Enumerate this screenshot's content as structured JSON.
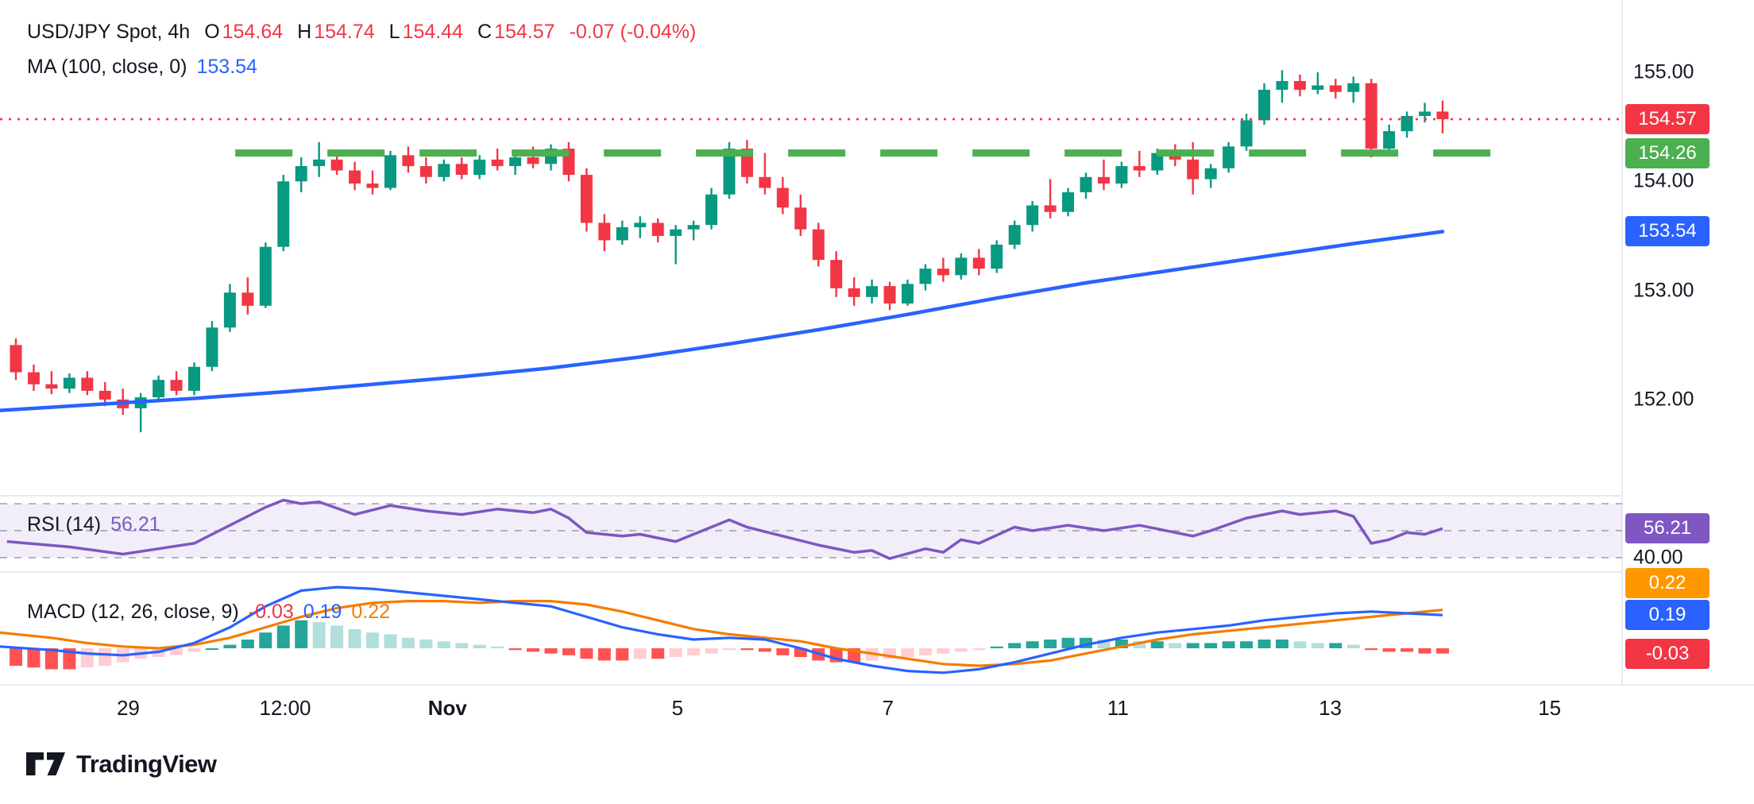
{
  "header": {
    "symbol": "USD/JPY Spot, 4h",
    "ohlc": {
      "o_label": "O",
      "o": "154.64",
      "h_label": "H",
      "h": "154.74",
      "l_label": "L",
      "l": "154.44",
      "c_label": "C",
      "c": "154.57",
      "change": "-0.07 (-0.04%)"
    },
    "ma_label": "MA (100, close, 0)",
    "ma_value": "153.54"
  },
  "panels": {
    "rsi": {
      "label": "RSI (14)",
      "value": "56.21"
    },
    "macd": {
      "label": "MACD (12, 26, close, 9)",
      "hist": "-0.03",
      "macd": "0.19",
      "signal": "0.22"
    }
  },
  "footer": {
    "logo_text": "TradingView"
  },
  "chart_data": {
    "type": "candlestick",
    "title": "USD/JPY Spot, 4h",
    "legend_ohlc": {
      "open": 154.64,
      "high": 154.74,
      "low": 154.44,
      "close": 154.57,
      "change": -0.07,
      "change_pct": -0.04
    },
    "price_axis": {
      "ticks": [
        {
          "text": "155.00",
          "value": 155.0,
          "style": "plain"
        },
        {
          "text": "154.57",
          "value": 154.57,
          "style": "badge",
          "bg": "#f23645"
        },
        {
          "text": "154.26",
          "value": 154.26,
          "style": "badge",
          "bg": "#4caf50"
        },
        {
          "text": "154.00",
          "value": 154.0,
          "style": "plain"
        },
        {
          "text": "153.54",
          "value": 153.54,
          "style": "badge",
          "bg": "#2962ff"
        },
        {
          "text": "153.00",
          "value": 153.0,
          "style": "plain"
        },
        {
          "text": "152.00",
          "value": 152.0,
          "style": "plain"
        }
      ]
    },
    "rsi_axis": {
      "ticks": [
        {
          "text": "56.21",
          "value": 56.21,
          "style": "badge",
          "bg": "#7e57c2"
        },
        {
          "text": "40.00",
          "value": 40,
          "style": "plain"
        }
      ]
    },
    "macd_axis": {
      "ticks": [
        {
          "text": "0.22",
          "value": 0.22,
          "bg": "#ff9800"
        },
        {
          "text": "0.19",
          "value": 0.19,
          "bg": "#2962ff"
        },
        {
          "text": "-0.03",
          "value": -0.03,
          "bg": "#f23645"
        }
      ]
    },
    "time_axis": {
      "ticks": [
        {
          "text": "29",
          "bar": 6.3
        },
        {
          "text": "12:00",
          "bar": 15.1
        },
        {
          "text": "Nov",
          "bar": 24.2,
          "bold": true
        },
        {
          "text": "5",
          "bar": 37.1
        },
        {
          "text": "7",
          "bar": 48.9
        },
        {
          "text": "11",
          "bar": 61.8
        },
        {
          "text": "13",
          "bar": 73.7
        },
        {
          "text": "15",
          "bar": 86.0
        }
      ]
    },
    "levels": {
      "current_price": {
        "value": 154.57,
        "color": "#f23645",
        "style": "dotted"
      },
      "resistance": {
        "value": 154.26,
        "color": "#4caf50",
        "style": "dashed",
        "from_bar": 12.3,
        "to_bar": 83.5
      }
    },
    "candles": [
      [
        152.5,
        152.56,
        152.18,
        152.25
      ],
      [
        152.25,
        152.32,
        152.08,
        152.14
      ],
      [
        152.14,
        152.26,
        152.05,
        152.1
      ],
      [
        152.1,
        152.24,
        152.06,
        152.2
      ],
      [
        152.2,
        152.26,
        152.04,
        152.08
      ],
      [
        152.08,
        152.16,
        151.94,
        152.0
      ],
      [
        152.0,
        152.1,
        151.86,
        151.92
      ],
      [
        151.92,
        152.06,
        151.7,
        152.02
      ],
      [
        152.02,
        152.22,
        151.98,
        152.18
      ],
      [
        152.18,
        152.26,
        152.04,
        152.08
      ],
      [
        152.08,
        152.34,
        152.04,
        152.3
      ],
      [
        152.3,
        152.72,
        152.26,
        152.66
      ],
      [
        152.66,
        153.06,
        152.62,
        152.98
      ],
      [
        152.98,
        153.12,
        152.78,
        152.86
      ],
      [
        152.86,
        153.44,
        152.84,
        153.4
      ],
      [
        153.4,
        154.06,
        153.36,
        154.0
      ],
      [
        154.0,
        154.22,
        153.9,
        154.14
      ],
      [
        154.14,
        154.36,
        154.04,
        154.2
      ],
      [
        154.2,
        154.26,
        154.06,
        154.1
      ],
      [
        154.1,
        154.18,
        153.92,
        153.98
      ],
      [
        153.98,
        154.1,
        153.88,
        153.94
      ],
      [
        153.94,
        154.28,
        153.92,
        154.24
      ],
      [
        154.24,
        154.32,
        154.08,
        154.14
      ],
      [
        154.14,
        154.22,
        153.98,
        154.04
      ],
      [
        154.04,
        154.2,
        154.0,
        154.16
      ],
      [
        154.16,
        154.22,
        154.02,
        154.06
      ],
      [
        154.06,
        154.24,
        154.02,
        154.2
      ],
      [
        154.2,
        154.3,
        154.1,
        154.14
      ],
      [
        154.14,
        154.26,
        154.06,
        154.22
      ],
      [
        154.22,
        154.32,
        154.12,
        154.16
      ],
      [
        154.16,
        154.34,
        154.1,
        154.3
      ],
      [
        154.3,
        154.36,
        154.0,
        154.06
      ],
      [
        154.06,
        154.12,
        153.54,
        153.62
      ],
      [
        153.62,
        153.7,
        153.36,
        153.46
      ],
      [
        153.46,
        153.64,
        153.42,
        153.58
      ],
      [
        153.58,
        153.68,
        153.48,
        153.62
      ],
      [
        153.62,
        153.66,
        153.44,
        153.5
      ],
      [
        153.5,
        153.6,
        153.24,
        153.56
      ],
      [
        153.56,
        153.64,
        153.46,
        153.6
      ],
      [
        153.6,
        153.94,
        153.56,
        153.88
      ],
      [
        153.88,
        154.36,
        153.84,
        154.3
      ],
      [
        154.3,
        154.38,
        153.98,
        154.04
      ],
      [
        154.04,
        154.26,
        153.88,
        153.94
      ],
      [
        153.94,
        154.04,
        153.7,
        153.76
      ],
      [
        153.76,
        153.88,
        153.5,
        153.56
      ],
      [
        153.56,
        153.62,
        153.22,
        153.28
      ],
      [
        153.28,
        153.36,
        152.94,
        153.02
      ],
      [
        153.02,
        153.12,
        152.86,
        152.94
      ],
      [
        152.94,
        153.1,
        152.88,
        153.04
      ],
      [
        153.04,
        153.08,
        152.82,
        152.88
      ],
      [
        152.88,
        153.1,
        152.86,
        153.06
      ],
      [
        153.06,
        153.24,
        153.0,
        153.2
      ],
      [
        153.2,
        153.3,
        153.08,
        153.14
      ],
      [
        153.14,
        153.34,
        153.1,
        153.3
      ],
      [
        153.3,
        153.38,
        153.14,
        153.2
      ],
      [
        153.2,
        153.46,
        153.16,
        153.42
      ],
      [
        153.42,
        153.64,
        153.38,
        153.6
      ],
      [
        153.6,
        153.82,
        153.54,
        153.78
      ],
      [
        153.78,
        154.02,
        153.66,
        153.72
      ],
      [
        153.72,
        153.94,
        153.68,
        153.9
      ],
      [
        153.9,
        154.08,
        153.84,
        154.04
      ],
      [
        154.04,
        154.2,
        153.92,
        153.98
      ],
      [
        153.98,
        154.18,
        153.94,
        154.14
      ],
      [
        154.14,
        154.28,
        154.04,
        154.1
      ],
      [
        154.1,
        154.3,
        154.06,
        154.26
      ],
      [
        154.26,
        154.34,
        154.14,
        154.2
      ],
      [
        154.2,
        154.36,
        153.88,
        154.02
      ],
      [
        154.02,
        154.16,
        153.94,
        154.12
      ],
      [
        154.12,
        154.36,
        154.08,
        154.32
      ],
      [
        154.32,
        154.62,
        154.28,
        154.56
      ],
      [
        154.56,
        154.9,
        154.52,
        154.84
      ],
      [
        154.84,
        155.02,
        154.72,
        154.92
      ],
      [
        154.92,
        154.98,
        154.78,
        154.84
      ],
      [
        154.84,
        155.0,
        154.8,
        154.88
      ],
      [
        154.88,
        154.94,
        154.76,
        154.82
      ],
      [
        154.82,
        154.96,
        154.72,
        154.9
      ],
      [
        154.9,
        154.94,
        154.22,
        154.3
      ],
      [
        154.3,
        154.52,
        154.24,
        154.46
      ],
      [
        154.46,
        154.64,
        154.4,
        154.6
      ],
      [
        154.6,
        154.72,
        154.54,
        154.64
      ],
      [
        154.64,
        154.74,
        154.44,
        154.57
      ]
    ],
    "ma100": {
      "period": 100,
      "source": "close",
      "offset": 0,
      "last": 153.54,
      "points": [
        [
          -0.9,
          151.9
        ],
        [
          5,
          151.96
        ],
        [
          10,
          152.01
        ],
        [
          15,
          152.07
        ],
        [
          20,
          152.14
        ],
        [
          25,
          152.21
        ],
        [
          30,
          152.29
        ],
        [
          35,
          152.39
        ],
        [
          40,
          152.51
        ],
        [
          45,
          152.64
        ],
        [
          50,
          152.78
        ],
        [
          55,
          152.93
        ],
        [
          60,
          153.07
        ],
        [
          65,
          153.19
        ],
        [
          70,
          153.31
        ],
        [
          75,
          153.43
        ],
        [
          80,
          153.54
        ]
      ]
    },
    "rsi": {
      "period": 14,
      "last": 56.21,
      "bands": [
        70,
        55,
        40
      ],
      "points": [
        [
          -0.5,
          49
        ],
        [
          3,
          46
        ],
        [
          6,
          42
        ],
        [
          8,
          45
        ],
        [
          10,
          48
        ],
        [
          12,
          58
        ],
        [
          14,
          68
        ],
        [
          15,
          72
        ],
        [
          16,
          70
        ],
        [
          17,
          71
        ],
        [
          19,
          64
        ],
        [
          21,
          69
        ],
        [
          23,
          66
        ],
        [
          25,
          64
        ],
        [
          27,
          67
        ],
        [
          29,
          65
        ],
        [
          30,
          67
        ],
        [
          31,
          62
        ],
        [
          32,
          54
        ],
        [
          34,
          52
        ],
        [
          35,
          53
        ],
        [
          36,
          51
        ],
        [
          37,
          49
        ],
        [
          38,
          53
        ],
        [
          40,
          61
        ],
        [
          41,
          57
        ],
        [
          43,
          52
        ],
        [
          45,
          47
        ],
        [
          47,
          43
        ],
        [
          48,
          44
        ],
        [
          49,
          39.5
        ],
        [
          51,
          45
        ],
        [
          52,
          43
        ],
        [
          53,
          50
        ],
        [
          54,
          48
        ],
        [
          56,
          57
        ],
        [
          57,
          55
        ],
        [
          59,
          58
        ],
        [
          61,
          55
        ],
        [
          63,
          58
        ],
        [
          64,
          56
        ],
        [
          66,
          52
        ],
        [
          67,
          55
        ],
        [
          69,
          62
        ],
        [
          71,
          66
        ],
        [
          72,
          64
        ],
        [
          74,
          66
        ],
        [
          75,
          63
        ],
        [
          76,
          48
        ],
        [
          77,
          50
        ],
        [
          78,
          54
        ],
        [
          79,
          53
        ],
        [
          80,
          56.2
        ]
      ]
    },
    "macd": {
      "fast": 12,
      "slow": 26,
      "source": "close",
      "signal_period": 9,
      "last": {
        "macd": 0.19,
        "signal": 0.22,
        "histogram": -0.03
      },
      "histogram": [
        -0.1,
        -0.11,
        -0.12,
        -0.12,
        -0.11,
        -0.1,
        -0.08,
        -0.06,
        -0.05,
        -0.04,
        -0.02,
        0.0,
        0.02,
        0.05,
        0.09,
        0.13,
        0.16,
        0.15,
        0.13,
        0.11,
        0.09,
        0.08,
        0.06,
        0.05,
        0.04,
        0.03,
        0.02,
        0.01,
        -0.01,
        -0.02,
        -0.03,
        -0.04,
        -0.06,
        -0.07,
        -0.07,
        -0.06,
        -0.06,
        -0.05,
        -0.04,
        -0.03,
        -0.01,
        -0.01,
        -0.02,
        -0.04,
        -0.05,
        -0.07,
        -0.08,
        -0.08,
        -0.07,
        -0.06,
        -0.05,
        -0.04,
        -0.03,
        -0.02,
        -0.01,
        0.01,
        0.03,
        0.04,
        0.05,
        0.06,
        0.06,
        0.05,
        0.05,
        0.04,
        0.04,
        0.03,
        0.03,
        0.03,
        0.04,
        0.04,
        0.05,
        0.05,
        0.04,
        0.03,
        0.03,
        0.02,
        -0.01,
        -0.02,
        -0.02,
        -0.03,
        -0.03
      ],
      "macd_line": [
        [
          -0.9,
          0.01
        ],
        [
          2,
          -0.01
        ],
        [
          4,
          -0.03
        ],
        [
          6,
          -0.04
        ],
        [
          8,
          -0.02
        ],
        [
          10,
          0.03
        ],
        [
          12,
          0.12
        ],
        [
          14,
          0.24
        ],
        [
          16,
          0.33
        ],
        [
          18,
          0.35
        ],
        [
          20,
          0.34
        ],
        [
          22,
          0.32
        ],
        [
          24,
          0.3
        ],
        [
          26,
          0.28
        ],
        [
          28,
          0.26
        ],
        [
          30,
          0.24
        ],
        [
          32,
          0.18
        ],
        [
          34,
          0.12
        ],
        [
          36,
          0.08
        ],
        [
          38,
          0.05
        ],
        [
          40,
          0.06
        ],
        [
          42,
          0.05
        ],
        [
          44,
          0.0
        ],
        [
          46,
          -0.06
        ],
        [
          48,
          -0.1
        ],
        [
          50,
          -0.13
        ],
        [
          52,
          -0.14
        ],
        [
          54,
          -0.12
        ],
        [
          56,
          -0.08
        ],
        [
          58,
          -0.03
        ],
        [
          60,
          0.02
        ],
        [
          62,
          0.06
        ],
        [
          64,
          0.09
        ],
        [
          66,
          0.11
        ],
        [
          68,
          0.13
        ],
        [
          70,
          0.16
        ],
        [
          72,
          0.18
        ],
        [
          74,
          0.2
        ],
        [
          76,
          0.21
        ],
        [
          78,
          0.2
        ],
        [
          80,
          0.19
        ]
      ],
      "signal_line": [
        [
          -0.9,
          0.09
        ],
        [
          2,
          0.06
        ],
        [
          4,
          0.03
        ],
        [
          6,
          0.01
        ],
        [
          8,
          0.0
        ],
        [
          10,
          0.02
        ],
        [
          12,
          0.06
        ],
        [
          14,
          0.12
        ],
        [
          16,
          0.18
        ],
        [
          18,
          0.23
        ],
        [
          20,
          0.26
        ],
        [
          22,
          0.27
        ],
        [
          24,
          0.27
        ],
        [
          26,
          0.26
        ],
        [
          28,
          0.27
        ],
        [
          30,
          0.27
        ],
        [
          32,
          0.25
        ],
        [
          34,
          0.21
        ],
        [
          36,
          0.16
        ],
        [
          38,
          0.11
        ],
        [
          40,
          0.08
        ],
        [
          42,
          0.06
        ],
        [
          44,
          0.04
        ],
        [
          46,
          0.0
        ],
        [
          48,
          -0.03
        ],
        [
          50,
          -0.06
        ],
        [
          52,
          -0.09
        ],
        [
          54,
          -0.1
        ],
        [
          56,
          -0.09
        ],
        [
          58,
          -0.07
        ],
        [
          60,
          -0.03
        ],
        [
          62,
          0.01
        ],
        [
          64,
          0.05
        ],
        [
          66,
          0.08
        ],
        [
          68,
          0.1
        ],
        [
          70,
          0.12
        ],
        [
          72,
          0.14
        ],
        [
          74,
          0.16
        ],
        [
          76,
          0.18
        ],
        [
          78,
          0.2
        ],
        [
          80,
          0.22
        ]
      ]
    },
    "colors": {
      "up": "#089981",
      "down": "#f23645",
      "ma": "#2962ff",
      "level": "#4caf50",
      "rsi": "#7e57c2",
      "rsi_fill": "rgba(126,87,194,0.10)",
      "rsi_band": "#787b86",
      "macd_line": "#2962ff",
      "signal_line": "#f57c00",
      "hist_up": "#26a69a",
      "hist_up_weak": "#b2dfdb",
      "hist_dn": "#ff5252",
      "hist_dn_weak": "#ffcdd2",
      "separator": "#e0e3eb"
    }
  }
}
